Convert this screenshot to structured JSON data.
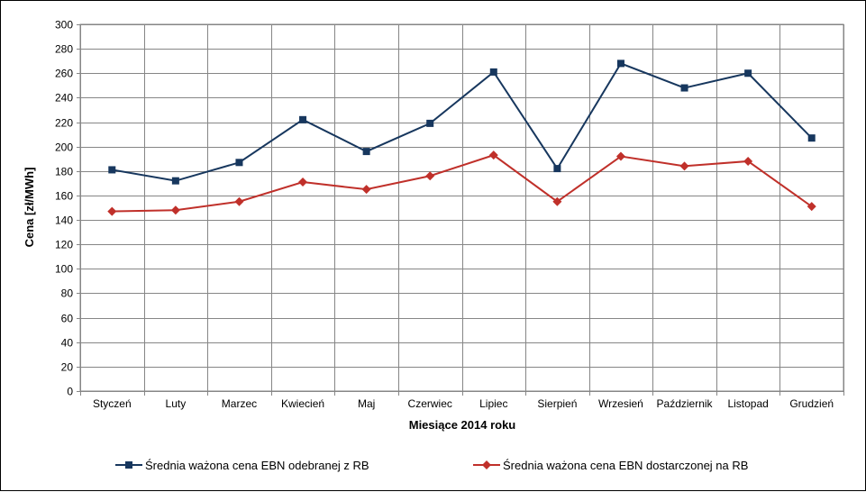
{
  "chart_data": {
    "type": "line",
    "title": "",
    "xlabel": "Miesiące 2014 roku",
    "ylabel": "Cena [zł/MWh]",
    "ylim": [
      0,
      300
    ],
    "ytick_step": 20,
    "grid": true,
    "legend_position": "bottom",
    "categories": [
      "Styczeń",
      "Luty",
      "Marzec",
      "Kwiecień",
      "Maj",
      "Czerwiec",
      "Lipiec",
      "Sierpień",
      "Wrzesień",
      "Październik",
      "Listopad",
      "Grudzień"
    ],
    "series": [
      {
        "name": "Średnia ważona cena EBN odebranej z RB",
        "color": "#17375E",
        "marker": "square",
        "values": [
          181,
          172,
          187,
          222,
          196,
          219,
          261,
          182,
          268,
          248,
          260,
          207
        ]
      },
      {
        "name": "Średnia ważona cena EBN dostarczonej na RB",
        "color": "#C0302A",
        "marker": "diamond",
        "values": [
          147,
          148,
          155,
          171,
          165,
          176,
          193,
          155,
          192,
          184,
          188,
          151
        ]
      }
    ]
  }
}
